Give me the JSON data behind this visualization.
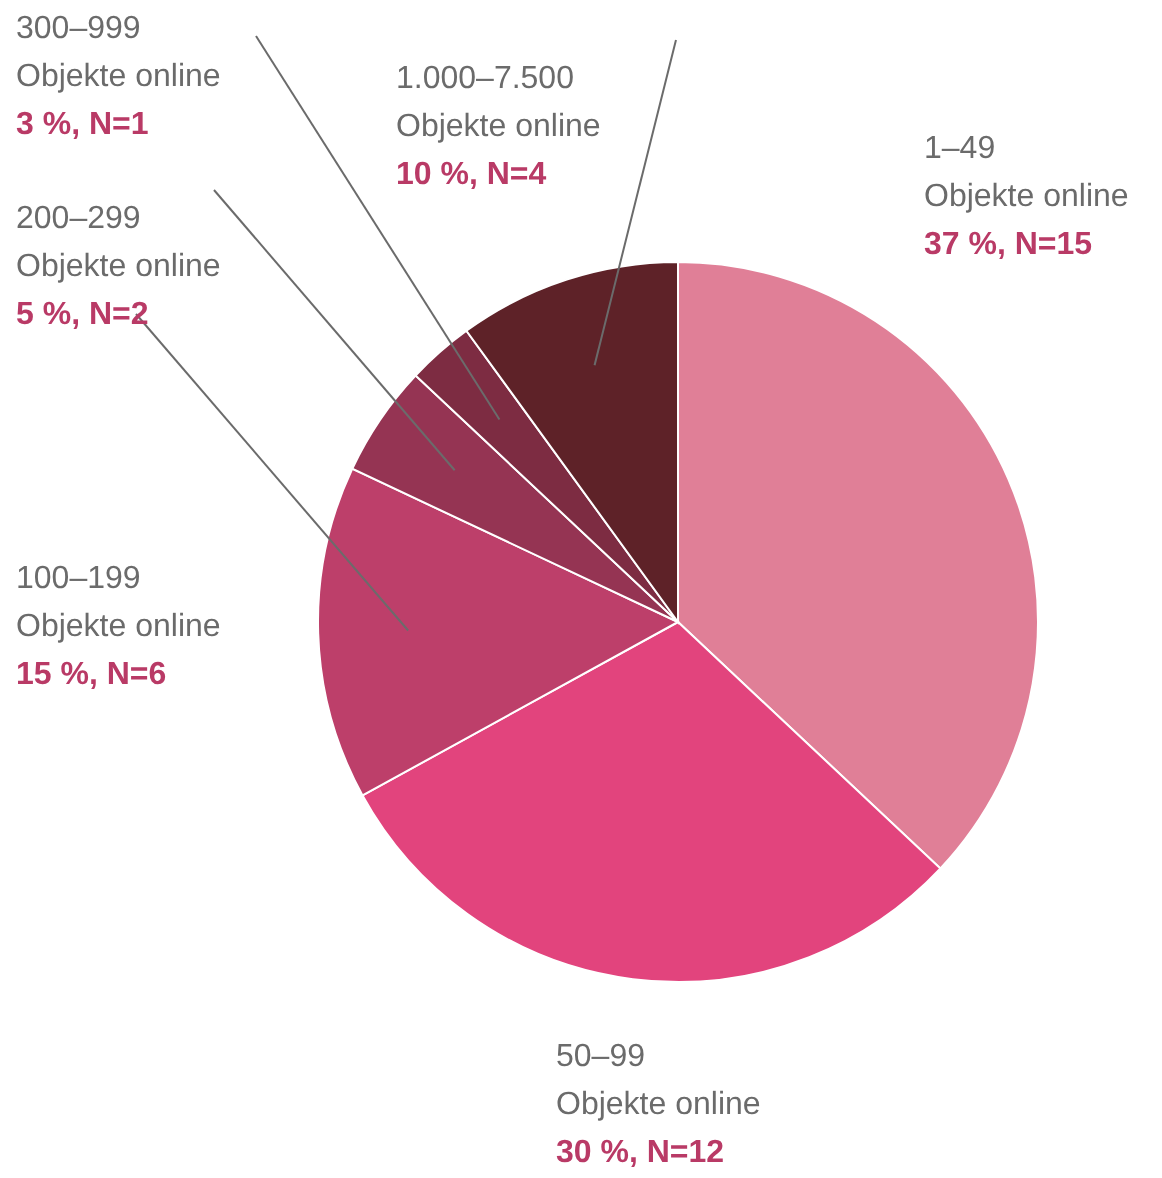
{
  "chart_data": {
    "type": "pie",
    "categories": [
      "1–49\nObjekte online",
      "50–99\nObjekte online",
      "100–199\nObjekte online",
      "200–299\nObjekte online",
      "300–999\nObjekte online",
      "1.000–7.500\nObjekte online"
    ],
    "values": [
      37,
      30,
      15,
      5,
      3,
      10
    ],
    "value_labels": [
      "37 %, N=15",
      "30 %, N=12",
      "15 %, N=6",
      "5 %, N=2",
      "3 %, N=1",
      "10 %, N=4"
    ],
    "colors": [
      "#e07f97",
      "#e2447d",
      "#bd3f6a",
      "#953453",
      "#7d2c42",
      "#5e2228"
    ]
  }
}
